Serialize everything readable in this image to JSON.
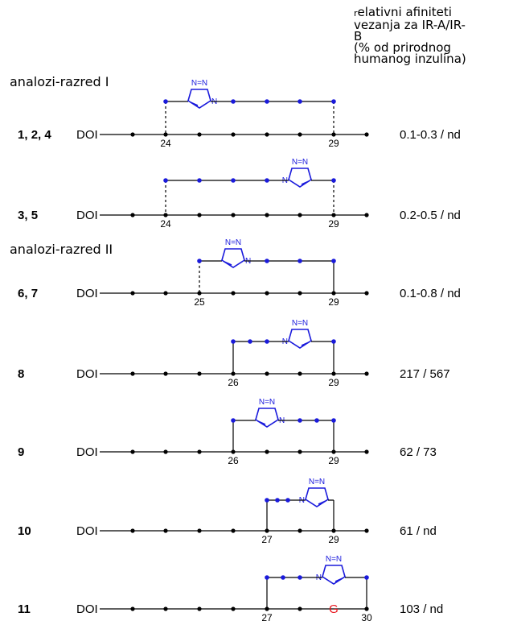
{
  "header": {
    "first_letter": "r",
    "line1_rest": "elativni afiniteti",
    "line2": "vezanja za IR-A/IR-",
    "line3": "B",
    "line4": "(% od prirodnog",
    "line5": "humanog inzulina)"
  },
  "classes": [
    {
      "label": "analozi-razred I"
    },
    {
      "label": "analozi-razred II"
    }
  ],
  "triazole_label": "N=N",
  "triazole_n": "N",
  "doi_label": "DOI",
  "rows": [
    {
      "compound_parts": [
        "1",
        ", ",
        "2",
        ", ",
        "4"
      ],
      "start_residue": "24",
      "end_residue": "29",
      "affinity": "0.1-0.3 / nd"
    },
    {
      "compound_parts": [
        "3",
        ", ",
        "5"
      ],
      "start_residue": "24",
      "end_residue": "29",
      "affinity": "0.2-0.5 / nd"
    },
    {
      "compound_parts": [
        "6",
        ", ",
        "7"
      ],
      "start_residue": "25",
      "end_residue": "29",
      "affinity": "0.1-0.8 / nd"
    },
    {
      "compound_parts": [
        "8"
      ],
      "start_residue": "26",
      "end_residue": "29",
      "affinity": "217 / 567"
    },
    {
      "compound_parts": [
        "9"
      ],
      "start_residue": "26",
      "end_residue": "29",
      "affinity": "62 / 73"
    },
    {
      "compound_parts": [
        "10"
      ],
      "start_residue": "27",
      "end_residue": "29",
      "affinity": "61 / nd"
    },
    {
      "compound_parts": [
        "11"
      ],
      "start_residue": "27",
      "end_residue": "30",
      "affinity": "103 / nd",
      "highlight_residue": "G"
    }
  ],
  "colors": {
    "line": "#000000",
    "bridge_dot": "#1a1adc",
    "highlight": "#e8141c"
  }
}
